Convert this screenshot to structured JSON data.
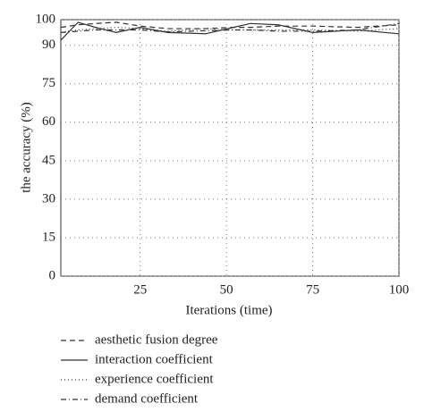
{
  "chart_data": {
    "type": "line",
    "xlabel": "Iterations (time)",
    "ylabel": "the accuracy (%)",
    "x": [
      2,
      7,
      12,
      18,
      25,
      33,
      44,
      52,
      57,
      65,
      75,
      88,
      100
    ],
    "xlim": [
      2,
      100
    ],
    "xticks": [
      25,
      50,
      75,
      100
    ],
    "ylim": [
      0,
      100
    ],
    "yticks": [
      0,
      15,
      30,
      45,
      60,
      75,
      90,
      100
    ],
    "grid": true,
    "series": [
      {
        "name": "aesthetic fusion degree",
        "color": "#333333",
        "dash": "6,4",
        "values": [
          97,
          98,
          98.5,
          99,
          97.5,
          96.5,
          96.5,
          97,
          97,
          97.5,
          97.5,
          97,
          98
        ]
      },
      {
        "name": "interaction coefficient",
        "color": "#333333",
        "dash": "none",
        "values": [
          92,
          99,
          97,
          95,
          97,
          95,
          94.5,
          97,
          98.5,
          98,
          95,
          96,
          94.5
        ]
      },
      {
        "name": "experience coefficient",
        "color": "#333333",
        "dash": "1,3",
        "values": [
          95,
          96,
          96.5,
          97,
          96.5,
          95.5,
          96.5,
          96,
          96,
          96,
          96,
          95.5,
          96.5
        ]
      },
      {
        "name": "demand coefficient",
        "color": "#333333",
        "dash": "6,3,1,3",
        "values": [
          95,
          95.5,
          96,
          96,
          96,
          95.2,
          95.7,
          96,
          96,
          95.5,
          95.5,
          96,
          98.5
        ]
      }
    ]
  }
}
